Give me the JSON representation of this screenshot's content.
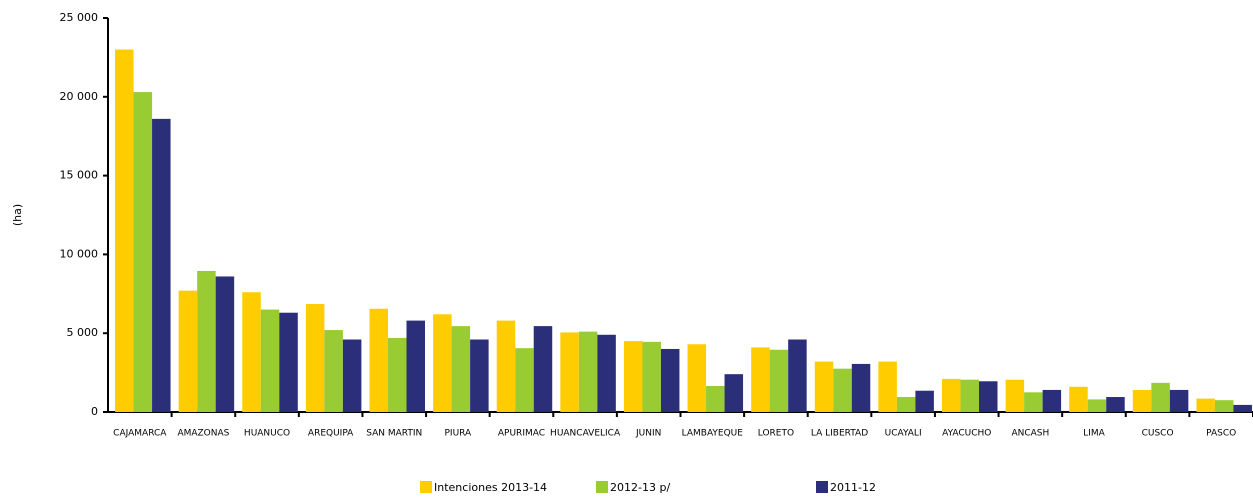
{
  "chart_data": {
    "type": "bar",
    "y_label": "(ha)",
    "categories": [
      "CAJAMARCA",
      "AMAZONAS",
      "HUANUCO",
      "AREQUIPA",
      "SAN MARTIN",
      "PIURA",
      "APURIMAC",
      "HUANCAVELICA",
      "JUNIN",
      "LAMBAYEQUE",
      "LORETO",
      "LA LIBERTAD",
      "UCAYALI",
      "AYACUCHO",
      "ANCASH",
      "LIMA",
      "CUSCO",
      "PASCO"
    ],
    "series": [
      {
        "name": "Intenciones 2013-14",
        "color": "#ffcc00",
        "values": [
          23000,
          7700,
          7600,
          6850,
          6550,
          6200,
          5800,
          5050,
          4500,
          4300,
          4100,
          3200,
          3200,
          2100,
          2050,
          1600,
          1400,
          850
        ]
      },
      {
        "name": "2012-13 p/",
        "color": "#99cc33",
        "values": [
          20300,
          8950,
          6500,
          5200,
          4700,
          5450,
          4050,
          5100,
          4450,
          1650,
          3950,
          2750,
          950,
          2050,
          1250,
          800,
          1850,
          750
        ]
      },
      {
        "name": "2011-12",
        "color": "#2b2f7a",
        "values": [
          18600,
          8600,
          6300,
          4600,
          5800,
          4600,
          5450,
          4900,
          4000,
          2400,
          4600,
          3050,
          1350,
          1950,
          1400,
          950,
          1400,
          450
        ]
      }
    ],
    "ylim": [
      0,
      25000
    ],
    "yticks": [
      0,
      {
        "value": 5000,
        "label": "5 000"
      },
      {
        "value": 10000,
        "label": "10 000"
      },
      {
        "value": 15000,
        "label": "15 000"
      },
      {
        "value": 20000,
        "label": "20 000"
      },
      {
        "value": 25000,
        "label": "25 000"
      }
    ]
  }
}
